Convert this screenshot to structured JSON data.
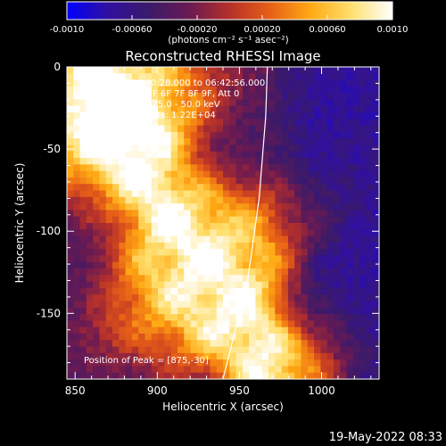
{
  "chart_data": {
    "type": "heatmap",
    "title": "Reconstructed RHESSI Image",
    "xlabel": "Heliocentric X (arcsec)",
    "ylabel": "Heliocentric Y (arcsec)",
    "xlim": [
      845,
      1035
    ],
    "ylim": [
      -190,
      0
    ],
    "x_ticks": [
      850,
      900,
      950,
      1000
    ],
    "y_ticks": [
      0,
      -50,
      -100,
      -150
    ],
    "colorbar": {
      "range": [
        -0.001,
        0.001
      ],
      "tick_values": [
        -0.001,
        -0.0006,
        -0.0002,
        0.0002,
        0.0006,
        0.001
      ],
      "tick_labels": [
        "-0.0010",
        "-0.00060",
        "-0.00020",
        "0.00020",
        "0.00060",
        "0.0010"
      ],
      "units_label": "(photons cm⁻² s⁻¹ asec⁻²)",
      "colormap": [
        "#0000ff",
        "#3010a0",
        "#3a1a6a",
        "#6a1a52",
        "#b5302a",
        "#e86016",
        "#ffaa14",
        "#ffe070",
        "#ffffff"
      ]
    },
    "annotations": [
      "5-Mar-2015 06:40:28.000 to 06:42:56.000",
      "Detectors: 3F 5F 6F 7F 8F 9F, Att 0",
      "Energy Range: 25.0 - 50.0 keV",
      "Clean   Total counts: 1.22E+04"
    ],
    "peak_label": "Position of Peak = [875,-30]",
    "peak": [
      875,
      -30
    ],
    "limb_curve": [
      [
        940,
        -190
      ],
      [
        955,
        -130
      ],
      [
        962,
        -80
      ],
      [
        966,
        -30
      ],
      [
        967,
        0
      ]
    ],
    "emission_ridge": [
      [
        862,
        -2
      ],
      [
        875,
        -30
      ],
      [
        895,
        -70
      ],
      [
        920,
        -110
      ],
      [
        945,
        -150
      ],
      [
        972,
        -185
      ]
    ],
    "background_level": -0.0004
  },
  "footer": {
    "timestamp": "19-May-2022 08:33"
  }
}
